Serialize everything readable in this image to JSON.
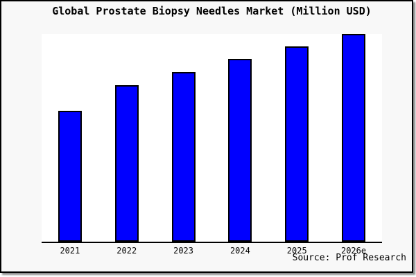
{
  "title": "Global Prostate Biopsy Needles Market (Million USD)",
  "source_note": "Source: Prof Research",
  "colors": {
    "canvas_background": "#f8f8f8",
    "plot_background": "#ffffff",
    "bar_fill": "#0000ff",
    "bar_border": "#000000",
    "frame_border": "#000000",
    "shadow": "#8f8f8f",
    "text": "#000000"
  },
  "chart_data": {
    "type": "bar",
    "title": "Global Prostate Biopsy Needles Market (Million USD)",
    "categories": [
      "2021",
      "2022",
      "2023",
      "2024",
      "2025",
      "2026e"
    ],
    "values_pct_of_max": [
      63,
      75.3,
      81.7,
      88,
      94,
      100
    ],
    "values_unit": "percent of tallest bar (no y-axis scale shown)",
    "unit_label": "Million USD",
    "xlabel": "",
    "ylabel": "",
    "ylim": [
      0,
      100
    ],
    "y_axis_visible": false,
    "gridlines": false,
    "legend": "none",
    "source_note": "Source: Prof Research"
  }
}
